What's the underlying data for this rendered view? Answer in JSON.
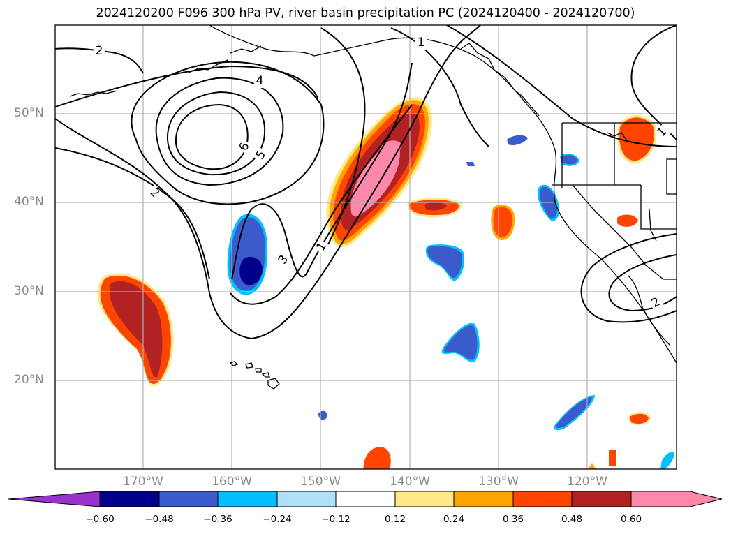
{
  "title": "2024120200 F096 300 hPa PV, river basin precipitation PC (2024120400 - 2024120700)",
  "map": {
    "lat_labels": [
      "50°N",
      "40°N",
      "30°N",
      "20°N"
    ],
    "lon_labels": [
      "170°W",
      "160°W",
      "150°W",
      "140°W",
      "130°W",
      "120°W"
    ],
    "pv_contour_labels": [
      "1",
      "1",
      "1",
      "2",
      "2",
      "2",
      "3",
      "4",
      "5",
      "6"
    ],
    "grid": true
  },
  "colorbar": {
    "ticks": [
      "−0.60",
      "−0.48",
      "−0.36",
      "−0.24",
      "−0.12",
      "0.12",
      "0.24",
      "0.36",
      "0.48",
      "0.60"
    ],
    "colors": {
      "under": "#9933cc",
      "bins": [
        "#00008b",
        "#3b5bcc",
        "#00bfff",
        "#b0e0f8",
        "#ffffff",
        "#ffe88a",
        "#ffa500",
        "#ff4500",
        "#b22222",
        "#ff88aa"
      ],
      "over": "#ff88aa"
    },
    "extend": "both"
  }
}
